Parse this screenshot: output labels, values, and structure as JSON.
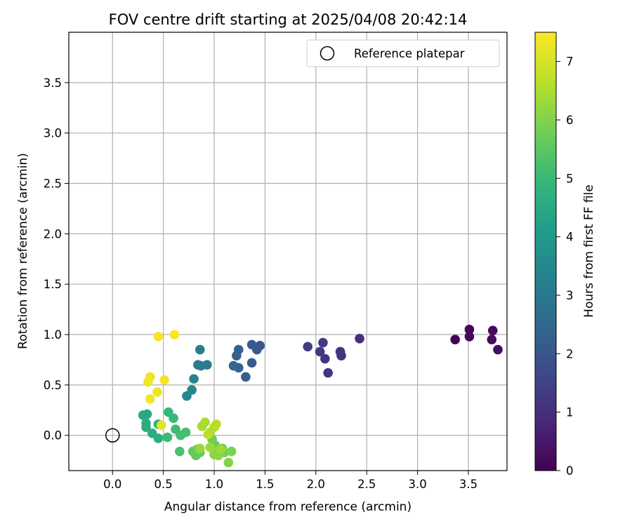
{
  "chart_data": {
    "type": "scatter",
    "title": "FOV centre drift starting at 2025/04/08 20:42:14",
    "xlabel": "Angular distance from reference (arcmin)",
    "ylabel": "Rotation from reference (arcmin)",
    "xlim": [
      -0.43,
      3.88
    ],
    "ylim": [
      -0.35,
      4.0
    ],
    "xticks": [
      "0.0",
      "0.5",
      "1.0",
      "1.5",
      "2.0",
      "2.5",
      "3.0",
      "3.5"
    ],
    "xtick_values": [
      0,
      0.5,
      1.0,
      1.5,
      2.0,
      2.5,
      3.0,
      3.5
    ],
    "yticks": [
      "0.0",
      "0.5",
      "1.0",
      "1.5",
      "2.0",
      "2.5",
      "3.0",
      "3.5"
    ],
    "ytick_values": [
      0,
      0.5,
      1.0,
      1.5,
      2.0,
      2.5,
      3.0,
      3.5
    ],
    "grid": true,
    "legend": {
      "position": "top-right",
      "label": "Reference platepar"
    },
    "reference_point": {
      "x": 0,
      "y": 0
    },
    "colorbar": {
      "label": "Hours from first FF file",
      "min": 0,
      "max": 7.5,
      "ticks": [
        "0",
        "1",
        "2",
        "3",
        "4",
        "5",
        "6",
        "7"
      ],
      "tick_values": [
        0,
        1,
        2,
        3,
        4,
        5,
        6,
        7
      ],
      "colormap": [
        "#440154",
        "#482878",
        "#3e4989",
        "#31688e",
        "#26828e",
        "#1f9e89",
        "#35b779",
        "#6ece58",
        "#b5de2b",
        "#fde725"
      ]
    },
    "series": [
      {
        "name": "Hours from first FF file",
        "points": [
          {
            "x": 3.37,
            "y": 0.95,
            "c": 0.05
          },
          {
            "x": 3.51,
            "y": 1.05,
            "c": 0.1
          },
          {
            "x": 3.51,
            "y": 0.98,
            "c": 0.15
          },
          {
            "x": 3.74,
            "y": 1.04,
            "c": 0.2
          },
          {
            "x": 3.73,
            "y": 0.95,
            "c": 0.25
          },
          {
            "x": 3.79,
            "y": 0.85,
            "c": 0.3
          },
          {
            "x": 2.43,
            "y": 0.96,
            "c": 1.0
          },
          {
            "x": 2.25,
            "y": 0.79,
            "c": 1.05
          },
          {
            "x": 2.24,
            "y": 0.83,
            "c": 1.1
          },
          {
            "x": 2.12,
            "y": 0.62,
            "c": 1.15
          },
          {
            "x": 2.09,
            "y": 0.76,
            "c": 1.2
          },
          {
            "x": 2.04,
            "y": 0.83,
            "c": 1.25
          },
          {
            "x": 2.07,
            "y": 0.92,
            "c": 1.3
          },
          {
            "x": 1.92,
            "y": 0.88,
            "c": 1.4
          },
          {
            "x": 1.45,
            "y": 0.89,
            "c": 2.05
          },
          {
            "x": 1.42,
            "y": 0.85,
            "c": 2.1
          },
          {
            "x": 1.37,
            "y": 0.9,
            "c": 2.15
          },
          {
            "x": 1.37,
            "y": 0.72,
            "c": 2.2
          },
          {
            "x": 1.31,
            "y": 0.58,
            "c": 2.25
          },
          {
            "x": 1.24,
            "y": 0.85,
            "c": 2.3
          },
          {
            "x": 1.22,
            "y": 0.79,
            "c": 2.35
          },
          {
            "x": 1.24,
            "y": 0.67,
            "c": 2.4
          },
          {
            "x": 1.19,
            "y": 0.69,
            "c": 2.45
          },
          {
            "x": 0.93,
            "y": 0.7,
            "c": 3.1
          },
          {
            "x": 0.87,
            "y": 0.69,
            "c": 3.15
          },
          {
            "x": 0.84,
            "y": 0.7,
            "c": 3.2
          },
          {
            "x": 0.86,
            "y": 0.85,
            "c": 3.25
          },
          {
            "x": 0.8,
            "y": 0.56,
            "c": 3.35
          },
          {
            "x": 0.78,
            "y": 0.45,
            "c": 3.45
          },
          {
            "x": 0.73,
            "y": 0.39,
            "c": 3.55
          },
          {
            "x": 0.3,
            "y": 0.2,
            "c": 4.55
          },
          {
            "x": 0.34,
            "y": 0.21,
            "c": 4.5
          },
          {
            "x": 0.33,
            "y": 0.12,
            "c": 4.6
          },
          {
            "x": 0.33,
            "y": 0.08,
            "c": 4.65
          },
          {
            "x": 0.39,
            "y": 0.02,
            "c": 4.7
          },
          {
            "x": 0.45,
            "y": -0.03,
            "c": 4.75
          },
          {
            "x": 0.45,
            "y": 0.11,
            "c": 4.8
          },
          {
            "x": 0.55,
            "y": 0.23,
            "c": 5.0
          },
          {
            "x": 0.6,
            "y": 0.17,
            "c": 5.05
          },
          {
            "x": 0.54,
            "y": -0.02,
            "c": 5.1
          },
          {
            "x": 0.62,
            "y": 0.06,
            "c": 5.15
          },
          {
            "x": 0.67,
            "y": 0.0,
            "c": 5.2
          },
          {
            "x": 0.72,
            "y": 0.03,
            "c": 5.25
          },
          {
            "x": 0.66,
            "y": -0.16,
            "c": 5.3
          },
          {
            "x": 0.79,
            "y": -0.16,
            "c": 5.6
          },
          {
            "x": 0.82,
            "y": -0.2,
            "c": 5.65
          },
          {
            "x": 0.86,
            "y": -0.17,
            "c": 5.7
          },
          {
            "x": 0.83,
            "y": -0.14,
            "c": 5.75
          },
          {
            "x": 1.01,
            "y": -0.1,
            "c": 5.8
          },
          {
            "x": 0.98,
            "y": -0.04,
            "c": 5.85
          },
          {
            "x": 1.08,
            "y": -0.13,
            "c": 5.9
          },
          {
            "x": 1.1,
            "y": -0.17,
            "c": 5.95
          },
          {
            "x": 1.17,
            "y": -0.16,
            "c": 6.0
          },
          {
            "x": 1.14,
            "y": -0.27,
            "c": 6.05
          },
          {
            "x": 1.03,
            "y": -0.16,
            "c": 6.1
          },
          {
            "x": 1.0,
            "y": -0.19,
            "c": 6.15
          },
          {
            "x": 1.04,
            "y": -0.2,
            "c": 6.2
          },
          {
            "x": 0.86,
            "y": -0.13,
            "c": 6.3
          },
          {
            "x": 0.96,
            "y": -0.12,
            "c": 6.35
          },
          {
            "x": 1.06,
            "y": -0.14,
            "c": 6.4
          },
          {
            "x": 0.88,
            "y": 0.09,
            "c": 6.5
          },
          {
            "x": 0.91,
            "y": 0.13,
            "c": 6.55
          },
          {
            "x": 0.96,
            "y": 0.03,
            "c": 6.6
          },
          {
            "x": 1.0,
            "y": 0.08,
            "c": 6.65
          },
          {
            "x": 1.02,
            "y": 0.11,
            "c": 6.7
          },
          {
            "x": 0.94,
            "y": 0.01,
            "c": 6.75
          },
          {
            "x": 0.48,
            "y": 0.1,
            "c": 7.2
          },
          {
            "x": 0.44,
            "y": 0.43,
            "c": 7.3
          },
          {
            "x": 0.37,
            "y": 0.58,
            "c": 7.32
          },
          {
            "x": 0.35,
            "y": 0.53,
            "c": 7.35
          },
          {
            "x": 0.37,
            "y": 0.36,
            "c": 7.38
          },
          {
            "x": 0.51,
            "y": 0.55,
            "c": 7.4
          },
          {
            "x": 0.45,
            "y": 0.98,
            "c": 7.42
          },
          {
            "x": 0.61,
            "y": 1.0,
            "c": 7.45
          }
        ]
      }
    ]
  }
}
